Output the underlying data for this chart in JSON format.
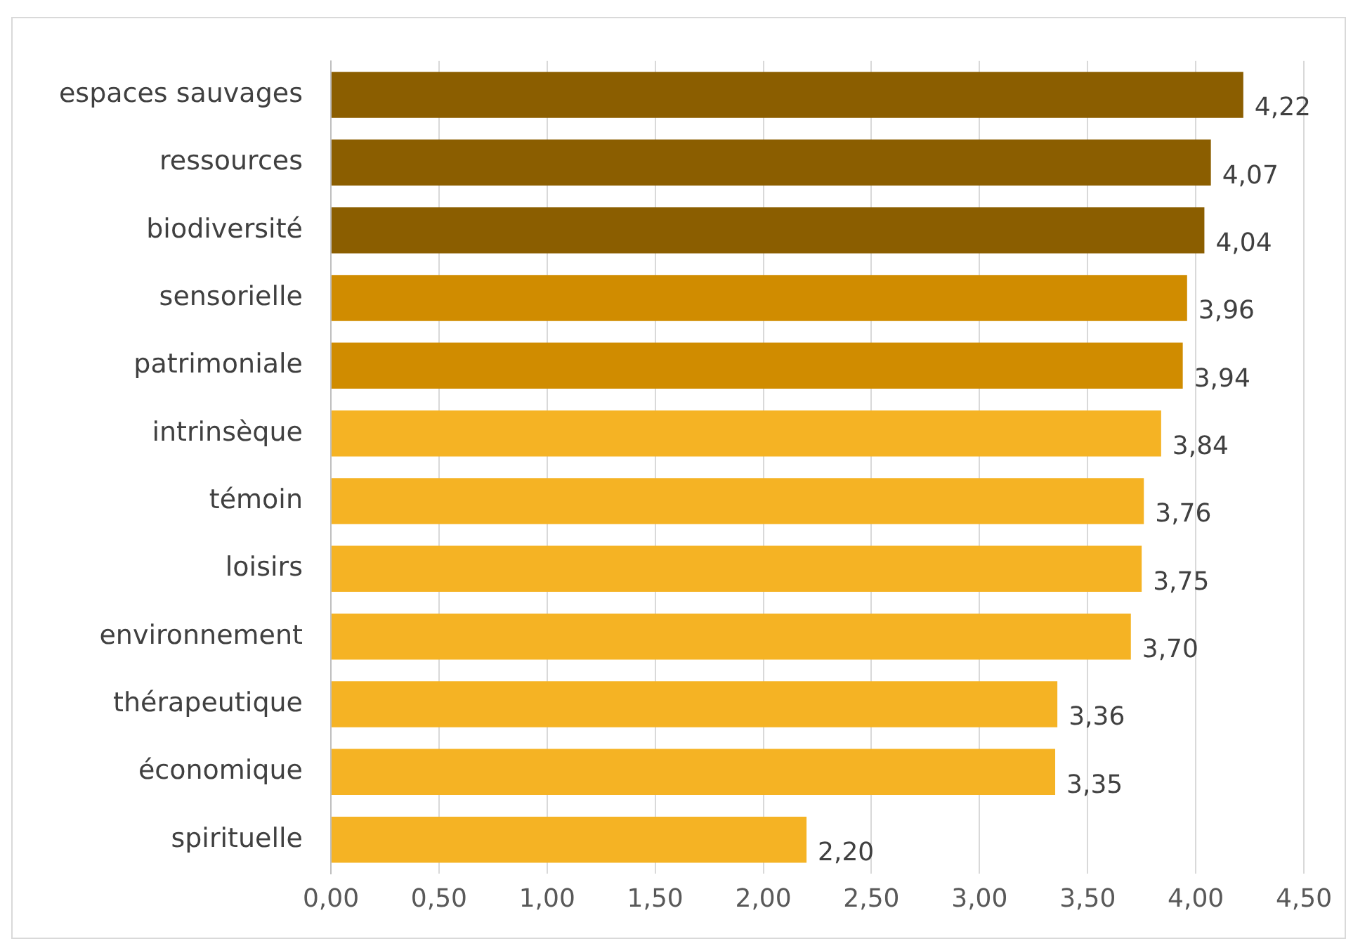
{
  "chart_data": {
    "type": "bar",
    "orientation": "horizontal",
    "categories": [
      "espaces sauvages",
      "ressources",
      "biodiversité",
      "sensorielle",
      "patrimoniale",
      "intrinsèque",
      "témoin",
      "loisirs",
      "environnement",
      "thérapeutique",
      "économique",
      "spirituelle"
    ],
    "values": [
      4.22,
      4.07,
      4.04,
      3.96,
      3.94,
      3.84,
      3.76,
      3.75,
      3.7,
      3.36,
      3.35,
      2.2
    ],
    "value_labels": [
      "4,22",
      "4,07",
      "4,04",
      "3,96",
      "3,94",
      "3,84",
      "3,76",
      "3,75",
      "3,70",
      "3,36",
      "3,35",
      "2,20"
    ],
    "colors": [
      "#8b5e00",
      "#8b5e00",
      "#8b5e00",
      "#d08c00",
      "#d08c00",
      "#f5b324",
      "#f5b324",
      "#f5b324",
      "#f5b324",
      "#f5b324",
      "#f5b324",
      "#f5b324"
    ],
    "xlim": [
      0,
      4.5
    ],
    "xticks": [
      {
        "value": 0,
        "label": "0,00"
      },
      {
        "value": 0.5,
        "label": "0,50"
      },
      {
        "value": 1,
        "label": "1,00"
      },
      {
        "value": 1.5,
        "label": "1,50"
      },
      {
        "value": 2,
        "label": "2,00"
      },
      {
        "value": 2.5,
        "label": "2,50"
      },
      {
        "value": 3,
        "label": "3,00"
      },
      {
        "value": 3.5,
        "label": "3,50"
      },
      {
        "value": 4,
        "label": "4,00"
      },
      {
        "value": 4.5,
        "label": "4,50"
      }
    ],
    "grid": "x",
    "legend": false
  }
}
